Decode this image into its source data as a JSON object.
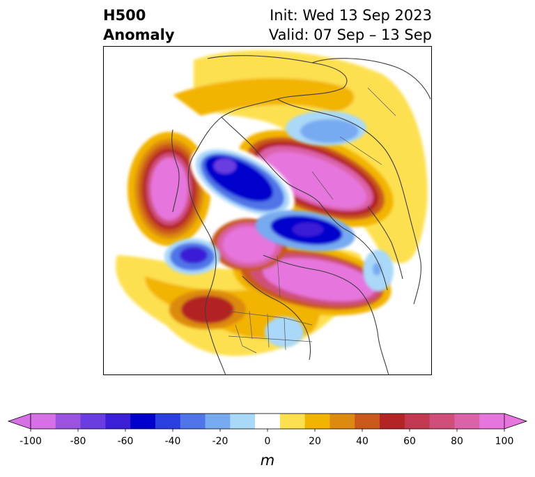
{
  "title": {
    "left_line1": "H500",
    "left_line2": "Anomaly",
    "right_line1": "Init: Wed 13 Sep 2023",
    "right_line2": "Valid: 07 Sep – 13 Sep"
  },
  "colorbar": {
    "unit": "m",
    "ticks": [
      "-100",
      "-80",
      "-60",
      "-40",
      "-20",
      "0",
      "20",
      "40",
      "60",
      "80",
      "100"
    ],
    "levels": [
      -100,
      -90,
      -80,
      -70,
      -60,
      -50,
      -40,
      -30,
      -20,
      -10,
      10,
      20,
      30,
      40,
      50,
      60,
      70,
      80,
      90,
      100
    ],
    "colors": [
      "#d770e6",
      "#9b52e0",
      "#6a3de0",
      "#3a1fd6",
      "#0000cd",
      "#2a3fe0",
      "#4f75e8",
      "#77aaf0",
      "#a9d8f8",
      "#ffffff",
      "#fde050",
      "#f2b400",
      "#dc8a10",
      "#c9581a",
      "#b32424",
      "#c23850",
      "#cf4f7a",
      "#db62a8",
      "#e676dd"
    ],
    "extend": "both"
  },
  "map": {
    "region": "North America / North Pacific polar view",
    "field": "500 hPa geopotential height anomaly"
  }
}
